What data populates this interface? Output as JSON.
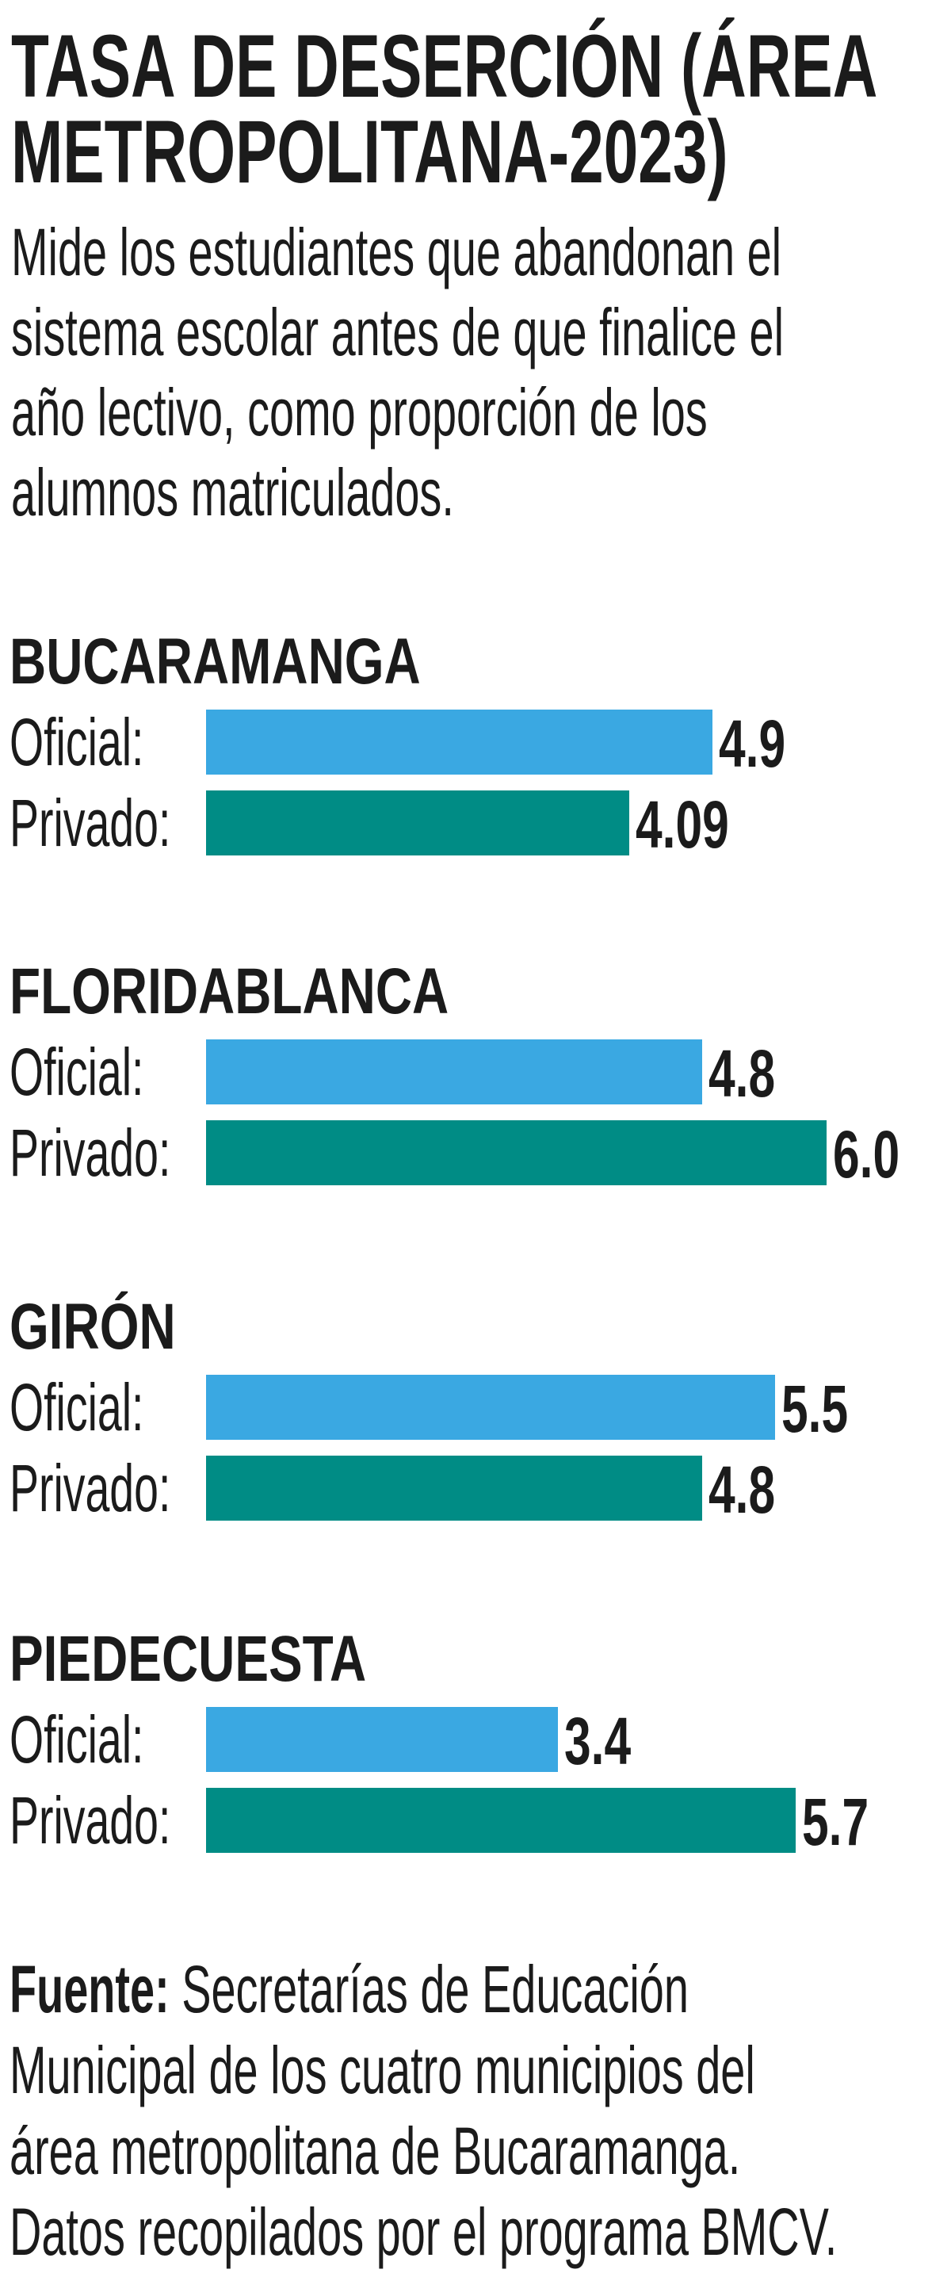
{
  "title_lines": [
    "TASA DE DESERCIÓN (ÁREA",
    "METROPOLITANA-2023)"
  ],
  "description_lines": [
    "Mide los estudiantes que abandonan el",
    "sistema escolar antes de que finalice el",
    "año lectivo, como proporción de los",
    "alumnos matriculados."
  ],
  "chart_data": {
    "type": "bar",
    "orientation": "horizontal",
    "title": "TASA DE DESERCIÓN (ÁREA METROPOLITANA-2023)",
    "categories": [
      "BUCARAMANGA",
      "FLORIDABLANCA",
      "GIRÓN",
      "PIEDECUESTA"
    ],
    "series": [
      {
        "name": "Oficial:",
        "color": "#3aa8e2",
        "values": [
          4.9,
          4.8,
          5.5,
          3.4
        ],
        "labels": [
          "4.9",
          "4.8",
          "5.5",
          "3.4"
        ]
      },
      {
        "name": "Privado:",
        "color": "#008c85",
        "values": [
          4.09,
          6.0,
          4.8,
          5.7
        ],
        "labels": [
          "4.09",
          "6.0",
          "4.8",
          "5.7"
        ]
      }
    ],
    "xlim": [
      0,
      6.0
    ],
    "grid": false
  },
  "footer": {
    "source_label": "Fuente:",
    "lines": [
      " Secretarías de Educación",
      "Municipal de los cuatro municipios del",
      "área metropolitana de Bucaramanga.",
      "Datos recopilados por el programa BMCV."
    ]
  }
}
